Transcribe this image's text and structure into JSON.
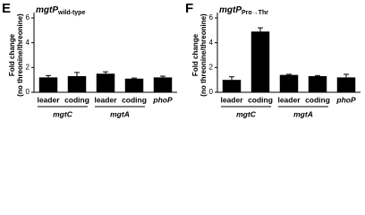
{
  "chart_data": [
    {
      "type": "bar",
      "panel": "E",
      "title": "mgtP",
      "title_subscript": "wild-type",
      "ylabel": [
        "Fold change",
        "(no threonine/threonine)"
      ],
      "categories": [
        "leader",
        "coding",
        "leader",
        "coding",
        "phoP"
      ],
      "groups": [
        "mgtC",
        "mgtA"
      ],
      "values": [
        1.2,
        1.3,
        1.5,
        1.1,
        1.2
      ],
      "errors": [
        0.15,
        0.3,
        0.15,
        0.05,
        0.1
      ],
      "color": "#000000",
      "ylim": [
        0,
        6
      ],
      "yticks": [
        0,
        2,
        4,
        6
      ]
    },
    {
      "type": "bar",
      "panel": "F",
      "title": "mgtP",
      "title_subscript": "Pro→Thr",
      "ylabel": [
        "Fold change",
        "(no threonine/threonine)"
      ],
      "categories": [
        "leader",
        "coding",
        "leader",
        "coding",
        "phoP"
      ],
      "groups": [
        "mgtC",
        "mgtA"
      ],
      "values": [
        1.0,
        4.9,
        1.4,
        1.3,
        1.2
      ],
      "errors": [
        0.25,
        0.3,
        0.05,
        0.05,
        0.25
      ],
      "color": "#000000",
      "ylim": [
        0,
        6
      ],
      "yticks": [
        0,
        2,
        4,
        6
      ]
    }
  ]
}
